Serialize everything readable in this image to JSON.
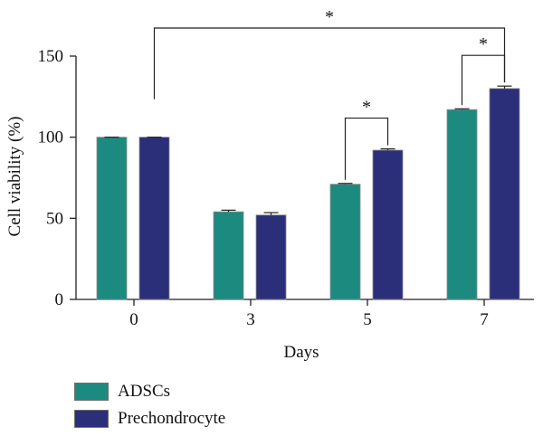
{
  "chart_data": {
    "type": "bar",
    "categories": [
      "0",
      "3",
      "5",
      "7"
    ],
    "series": [
      {
        "name": "ADSCs",
        "values": [
          100,
          54,
          71,
          117
        ],
        "errors": [
          0,
          1,
          0.5,
          0.5
        ],
        "color": "#1d8a80"
      },
      {
        "name": "Prechondrocyte",
        "values": [
          100,
          52,
          92,
          130
        ],
        "errors": [
          0,
          1.5,
          0.8,
          1.5
        ],
        "color": "#2b2f7a"
      }
    ],
    "xlabel": "Days",
    "ylabel": "Cell viability (%)",
    "ylim": [
      0,
      150
    ],
    "yticks": [
      0,
      50,
      100,
      150
    ],
    "grid": false,
    "legend_position": "bottom-left",
    "significance": [
      {
        "from": {
          "category": "0",
          "series": "Prechondrocyte"
        },
        "to": {
          "category": "7",
          "series": "Prechondrocyte"
        },
        "label": "*"
      },
      {
        "from": {
          "category": "5",
          "series": "ADSCs"
        },
        "to": {
          "category": "5",
          "series": "Prechondrocyte"
        },
        "label": "*"
      },
      {
        "from": {
          "category": "7",
          "series": "ADSCs"
        },
        "to": {
          "category": "7",
          "series": "Prechondrocyte"
        },
        "label": "*"
      }
    ]
  },
  "legend": {
    "items": [
      {
        "label": "ADSCs",
        "color": "#1d8a80"
      },
      {
        "label": "Prechondrocyte",
        "color": "#2b2f7a"
      }
    ]
  }
}
